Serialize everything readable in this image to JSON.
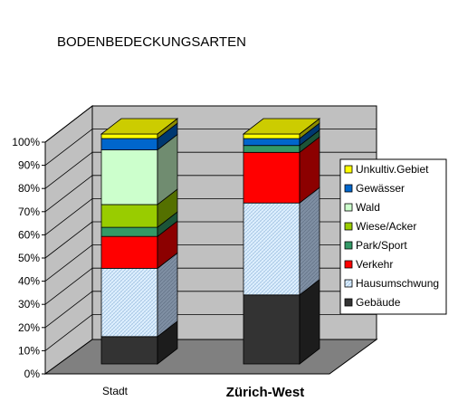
{
  "chart_data": {
    "type": "bar",
    "stacked": true,
    "percent_stacked": true,
    "three_d": true,
    "title": "BODENBEDECKUNGSARTEN",
    "categories": [
      "Stadt",
      "Zürich-West"
    ],
    "y_ticks": [
      "0%",
      "10%",
      "20%",
      "30%",
      "40%",
      "50%",
      "60%",
      "70%",
      "80%",
      "90%",
      "100%"
    ],
    "ylim": [
      0,
      100
    ],
    "grid": true,
    "legend_position": "right",
    "series": [
      {
        "name": "Gebäude",
        "values": [
          12,
          30
        ],
        "color": "#333333",
        "pattern": false
      },
      {
        "name": "Hausumschwung",
        "values": [
          30,
          40
        ],
        "color": "#dff0ff",
        "pattern": true
      },
      {
        "name": "Verkehr",
        "values": [
          14,
          22
        ],
        "color": "#ff0000",
        "pattern": false
      },
      {
        "name": "Park/Sport",
        "values": [
          4,
          3
        ],
        "color": "#339966",
        "pattern": false
      },
      {
        "name": "Wiese/Acker",
        "values": [
          10,
          0
        ],
        "color": "#99cc00",
        "pattern": false
      },
      {
        "name": "Wald",
        "values": [
          24,
          0
        ],
        "color": "#ccffcc",
        "pattern": false
      },
      {
        "name": "Gewässer",
        "values": [
          5,
          3
        ],
        "color": "#0066cc",
        "pattern": false
      },
      {
        "name": "Unkultiv.Gebiet",
        "values": [
          2,
          2
        ],
        "color": "#ffff00",
        "pattern": false
      }
    ],
    "colors": {
      "walls": "#c0c0c0",
      "floor": "#808080",
      "top_face": "#cccc00",
      "gridline": "#000000"
    }
  }
}
